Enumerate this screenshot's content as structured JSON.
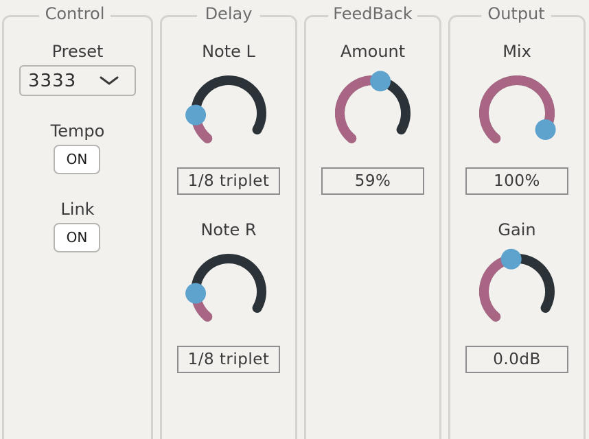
{
  "colors": {
    "background": "#f3f1ee",
    "panel_border": "#d6d3cf",
    "knob_track": "#2b3238",
    "knob_fill": "#a96684",
    "knob_handle": "#5ea3cd"
  },
  "control": {
    "title": "Control",
    "preset_label": "Preset",
    "preset_value": "3333",
    "preset_icon": "chevron-down-icon",
    "tempo_label": "Tempo",
    "tempo_toggle": "ON",
    "link_label": "Link",
    "link_toggle": "ON"
  },
  "delay": {
    "title": "Delay",
    "note_l_label": "Note L",
    "note_l_value": "1/8 triplet",
    "note_l_level": 0.18,
    "note_r_label": "Note R",
    "note_r_value": "1/8 triplet",
    "note_r_level": 0.18
  },
  "feedback": {
    "title": "FeedBack",
    "amount_label": "Amount",
    "amount_value": "59%",
    "amount_level": 0.59
  },
  "output": {
    "title": "Output",
    "mix_label": "Mix",
    "mix_value": "100%",
    "mix_level": 1.0,
    "gain_label": "Gain",
    "gain_value": "0.0dB",
    "gain_level": 0.5
  }
}
